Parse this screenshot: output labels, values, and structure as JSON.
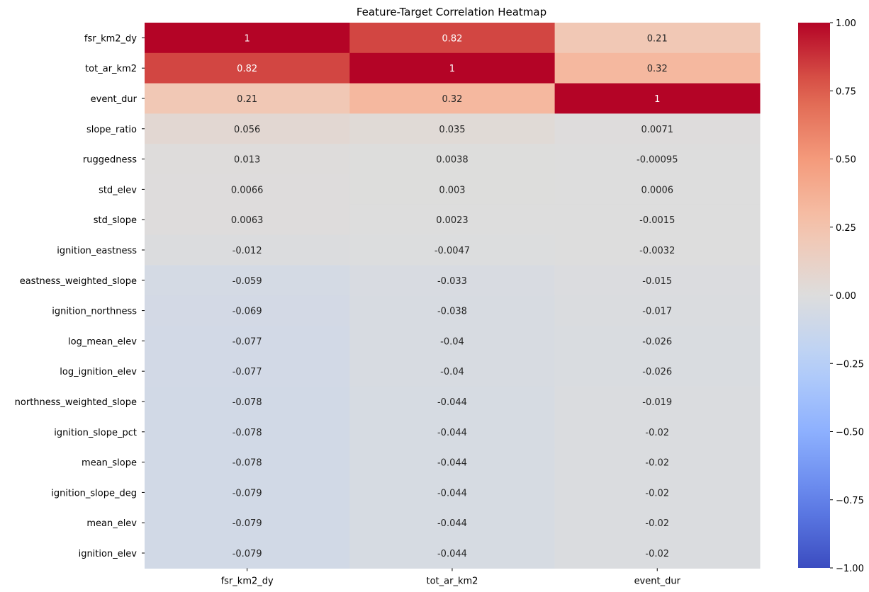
{
  "chart_data": {
    "type": "heatmap",
    "title": "Feature-Target Correlation Heatmap",
    "colormap": "coolwarm",
    "vmin": -1.0,
    "vmax": 1.0,
    "columns": [
      "fsr_km2_dy",
      "tot_ar_km2",
      "event_dur"
    ],
    "rows": [
      "fsr_km2_dy",
      "tot_ar_km2",
      "event_dur",
      "slope_ratio",
      "ruggedness",
      "std_elev",
      "std_slope",
      "ignition_eastness",
      "eastness_weighted_slope",
      "ignition_northness",
      "log_mean_elev",
      "log_ignition_elev",
      "northness_weighted_slope",
      "ignition_slope_pct",
      "mean_slope",
      "ignition_slope_deg",
      "mean_elev",
      "ignition_elev"
    ],
    "values": [
      [
        1,
        0.82,
        0.21
      ],
      [
        0.82,
        1,
        0.32
      ],
      [
        0.21,
        0.32,
        1
      ],
      [
        0.056,
        0.035,
        0.0071
      ],
      [
        0.013,
        0.0038,
        -0.00095
      ],
      [
        0.0066,
        0.003,
        0.0006
      ],
      [
        0.0063,
        0.0023,
        -0.0015
      ],
      [
        -0.012,
        -0.0047,
        -0.0032
      ],
      [
        -0.059,
        -0.033,
        -0.015
      ],
      [
        -0.069,
        -0.038,
        -0.017
      ],
      [
        -0.077,
        -0.04,
        -0.026
      ],
      [
        -0.077,
        -0.04,
        -0.026
      ],
      [
        -0.078,
        -0.044,
        -0.019
      ],
      [
        -0.078,
        -0.044,
        -0.02
      ],
      [
        -0.078,
        -0.044,
        -0.02
      ],
      [
        -0.079,
        -0.044,
        -0.02
      ],
      [
        -0.079,
        -0.044,
        -0.02
      ],
      [
        -0.079,
        -0.044,
        -0.02
      ]
    ],
    "annotations": [
      [
        "1",
        "0.82",
        "0.21"
      ],
      [
        "0.82",
        "1",
        "0.32"
      ],
      [
        "0.21",
        "0.32",
        "1"
      ],
      [
        "0.056",
        "0.035",
        "0.0071"
      ],
      [
        "0.013",
        "0.0038",
        "-0.00095"
      ],
      [
        "0.0066",
        "0.003",
        "0.0006"
      ],
      [
        "0.0063",
        "0.0023",
        "-0.0015"
      ],
      [
        "-0.012",
        "-0.0047",
        "-0.0032"
      ],
      [
        "-0.059",
        "-0.033",
        "-0.015"
      ],
      [
        "-0.069",
        "-0.038",
        "-0.017"
      ],
      [
        "-0.077",
        "-0.04",
        "-0.026"
      ],
      [
        "-0.077",
        "-0.04",
        "-0.026"
      ],
      [
        "-0.078",
        "-0.044",
        "-0.019"
      ],
      [
        "-0.078",
        "-0.044",
        "-0.02"
      ],
      [
        "-0.078",
        "-0.044",
        "-0.02"
      ],
      [
        "-0.079",
        "-0.044",
        "-0.02"
      ],
      [
        "-0.079",
        "-0.044",
        "-0.02"
      ],
      [
        "-0.079",
        "-0.044",
        "-0.02"
      ]
    ],
    "colorbar": {
      "ticks": [
        1.0,
        0.75,
        0.5,
        0.25,
        0.0,
        -0.25,
        -0.5,
        -0.75,
        -1.0
      ],
      "tick_labels": [
        "1.00",
        "0.75",
        "0.50",
        "0.25",
        "0.00",
        "−0.25",
        "−0.50",
        "−0.75",
        "−1.00"
      ]
    }
  }
}
